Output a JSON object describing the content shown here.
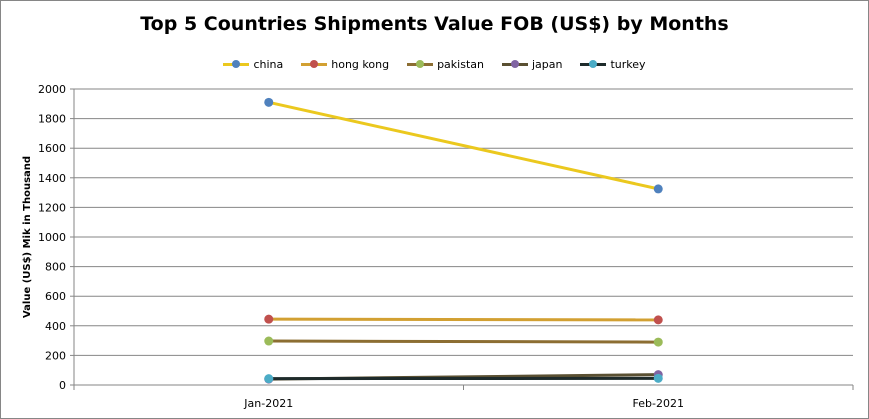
{
  "chart_data": {
    "type": "line",
    "title": "Top 5 Countries Shipments Value FOB (US$) by Months",
    "xlabel": "",
    "ylabel": "Value (US$) Mik in Thousand",
    "categories": [
      "Jan-2021",
      "Feb-2021"
    ],
    "ylim": [
      0,
      2000
    ],
    "yticks": [
      0,
      200,
      400,
      600,
      800,
      1000,
      1200,
      1400,
      1600,
      1800,
      2000
    ],
    "grid": true,
    "legend": "top",
    "series": [
      {
        "name": "china",
        "values": [
          1910,
          1325
        ],
        "line_color": "#ebc81e",
        "marker_color": "#4f81bd"
      },
      {
        "name": "hong kong",
        "values": [
          445,
          440
        ],
        "line_color": "#d2a032",
        "marker_color": "#c0504d"
      },
      {
        "name": "pakistan",
        "values": [
          297,
          290
        ],
        "line_color": "#8c6e32",
        "marker_color": "#9bbb59"
      },
      {
        "name": "japan",
        "values": [
          40,
          70
        ],
        "line_color": "#5a5032",
        "marker_color": "#8064a2"
      },
      {
        "name": "turkey",
        "values": [
          43,
          45
        ],
        "line_color": "#1e2b2b",
        "marker_color": "#4bacc6"
      }
    ]
  }
}
